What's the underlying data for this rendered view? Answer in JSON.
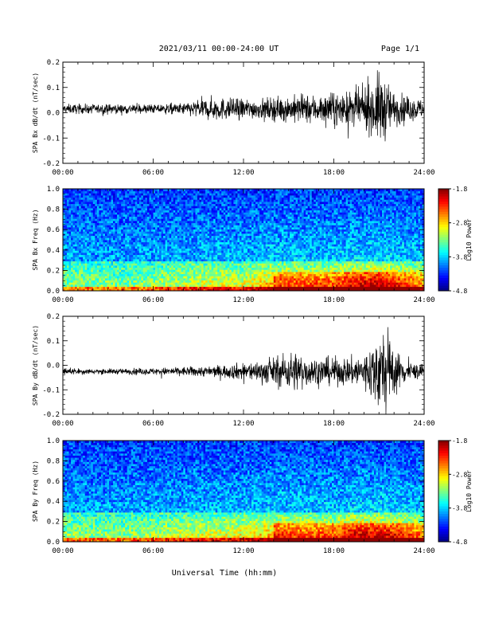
{
  "header": {
    "title": "2021/03/11  00:00-24:00 UT",
    "page": "Page 1/1"
  },
  "footer": {
    "xlabel": "Universal Time (hh:mm)"
  },
  "chart_data": [
    {
      "type": "line",
      "ylabel": "SPA Bx dB/dt (nT/sec)",
      "xlim": [
        0,
        24
      ],
      "ylim": [
        -0.2,
        0.2
      ],
      "x_ticks": [
        "00:00",
        "06:00",
        "12:00",
        "18:00",
        "24:00"
      ],
      "y_ticks": [
        "0.2",
        "0.1",
        "0.0",
        "-0.1",
        "-0.2"
      ],
      "envelope_hours": [
        0,
        2,
        4,
        6,
        8,
        9,
        10,
        11,
        12,
        13,
        14,
        15,
        16,
        17,
        18,
        19,
        20,
        20.5,
        21,
        21.5,
        22,
        23,
        24
      ],
      "amplitude": [
        0.02,
        0.02,
        0.02,
        0.02,
        0.025,
        0.04,
        0.05,
        0.045,
        0.045,
        0.04,
        0.05,
        0.055,
        0.06,
        0.06,
        0.07,
        0.07,
        0.09,
        0.1,
        0.16,
        0.12,
        0.07,
        0.05,
        0.04
      ],
      "baseline": 0.015
    },
    {
      "type": "heatmap",
      "ylabel": "SPA Bx Freq (Hz)",
      "xlim": [
        0,
        24
      ],
      "ylim": [
        0.0,
        1.0
      ],
      "x_ticks": [
        "00:00",
        "06:00",
        "12:00",
        "18:00",
        "24:00"
      ],
      "y_ticks": [
        "1.0",
        "0.8",
        "0.6",
        "0.4",
        "0.2",
        "0.0"
      ],
      "colorbar_label": "Log10 Power",
      "colorbar_ticks": [
        "-1.8",
        "-2.8",
        "-3.8",
        "-4.8"
      ],
      "color_range": [
        -4.8,
        -1.8
      ],
      "activity_hours": [
        0,
        4,
        8,
        10,
        12,
        14,
        16,
        18,
        19,
        20,
        21,
        22,
        24
      ],
      "activity_level": [
        0.25,
        0.2,
        0.4,
        0.5,
        0.5,
        0.75,
        0.7,
        0.7,
        0.85,
        0.9,
        0.95,
        0.85,
        0.55
      ]
    },
    {
      "type": "line",
      "ylabel": "SPA By dB/dt (nT/sec)",
      "xlim": [
        0,
        24
      ],
      "ylim": [
        -0.2,
        0.2
      ],
      "x_ticks": [
        "00:00",
        "06:00",
        "12:00",
        "18:00",
        "24:00"
      ],
      "y_ticks": [
        "0.2",
        "0.1",
        "0.0",
        "-0.1",
        "-0.2"
      ],
      "envelope_hours": [
        0,
        2,
        4,
        6,
        8,
        10,
        11,
        12,
        13,
        14,
        15,
        15.5,
        16,
        17,
        18,
        19,
        20,
        20.5,
        21,
        21.5,
        22,
        23,
        24
      ],
      "amplitude": [
        0.015,
        0.012,
        0.012,
        0.015,
        0.02,
        0.025,
        0.03,
        0.04,
        0.045,
        0.06,
        0.08,
        0.09,
        0.07,
        0.06,
        0.06,
        0.06,
        0.08,
        0.12,
        0.18,
        0.2,
        0.1,
        0.04,
        0.03
      ],
      "baseline": -0.025
    },
    {
      "type": "heatmap",
      "ylabel": "SPA By Freq (Hz)",
      "xlim": [
        0,
        24
      ],
      "ylim": [
        0.0,
        1.0
      ],
      "x_ticks": [
        "00:00",
        "06:00",
        "12:00",
        "18:00",
        "24:00"
      ],
      "y_ticks": [
        "1.0",
        "0.8",
        "0.6",
        "0.4",
        "0.2",
        "0.0"
      ],
      "colorbar_label": "Log10 Power",
      "colorbar_ticks": [
        "-1.8",
        "-2.8",
        "-3.8",
        "-4.8"
      ],
      "color_range": [
        -4.8,
        -1.8
      ],
      "activity_hours": [
        0,
        4,
        8,
        10,
        12,
        14,
        16,
        18,
        19,
        20,
        21,
        22,
        24
      ],
      "activity_level": [
        0.3,
        0.25,
        0.45,
        0.5,
        0.55,
        0.8,
        0.7,
        0.7,
        0.85,
        0.95,
        0.9,
        0.85,
        0.6
      ]
    }
  ]
}
